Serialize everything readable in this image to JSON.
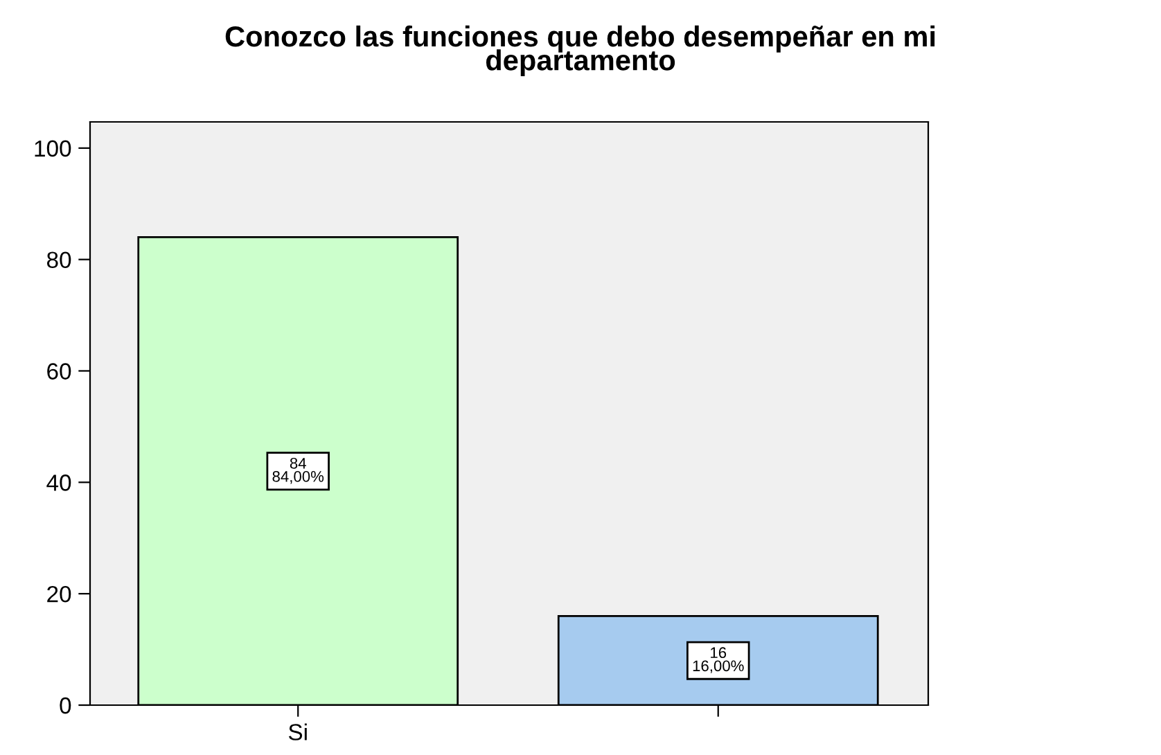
{
  "chart_data": {
    "type": "bar",
    "title": "Conozco las funciones que debo desempeñar en mi\ndepartamento",
    "categories": [
      "Si",
      null
    ],
    "values": [
      84,
      16
    ],
    "colors": [
      "#ccffcc",
      "#a6cbef"
    ],
    "value_labels": [
      "84\n84,00%",
      "16\n16,00%"
    ],
    "ylim": [
      0,
      104.7
    ],
    "yticks": [
      0,
      20,
      40,
      60,
      80,
      100
    ],
    "grid": false,
    "legend": false
  }
}
